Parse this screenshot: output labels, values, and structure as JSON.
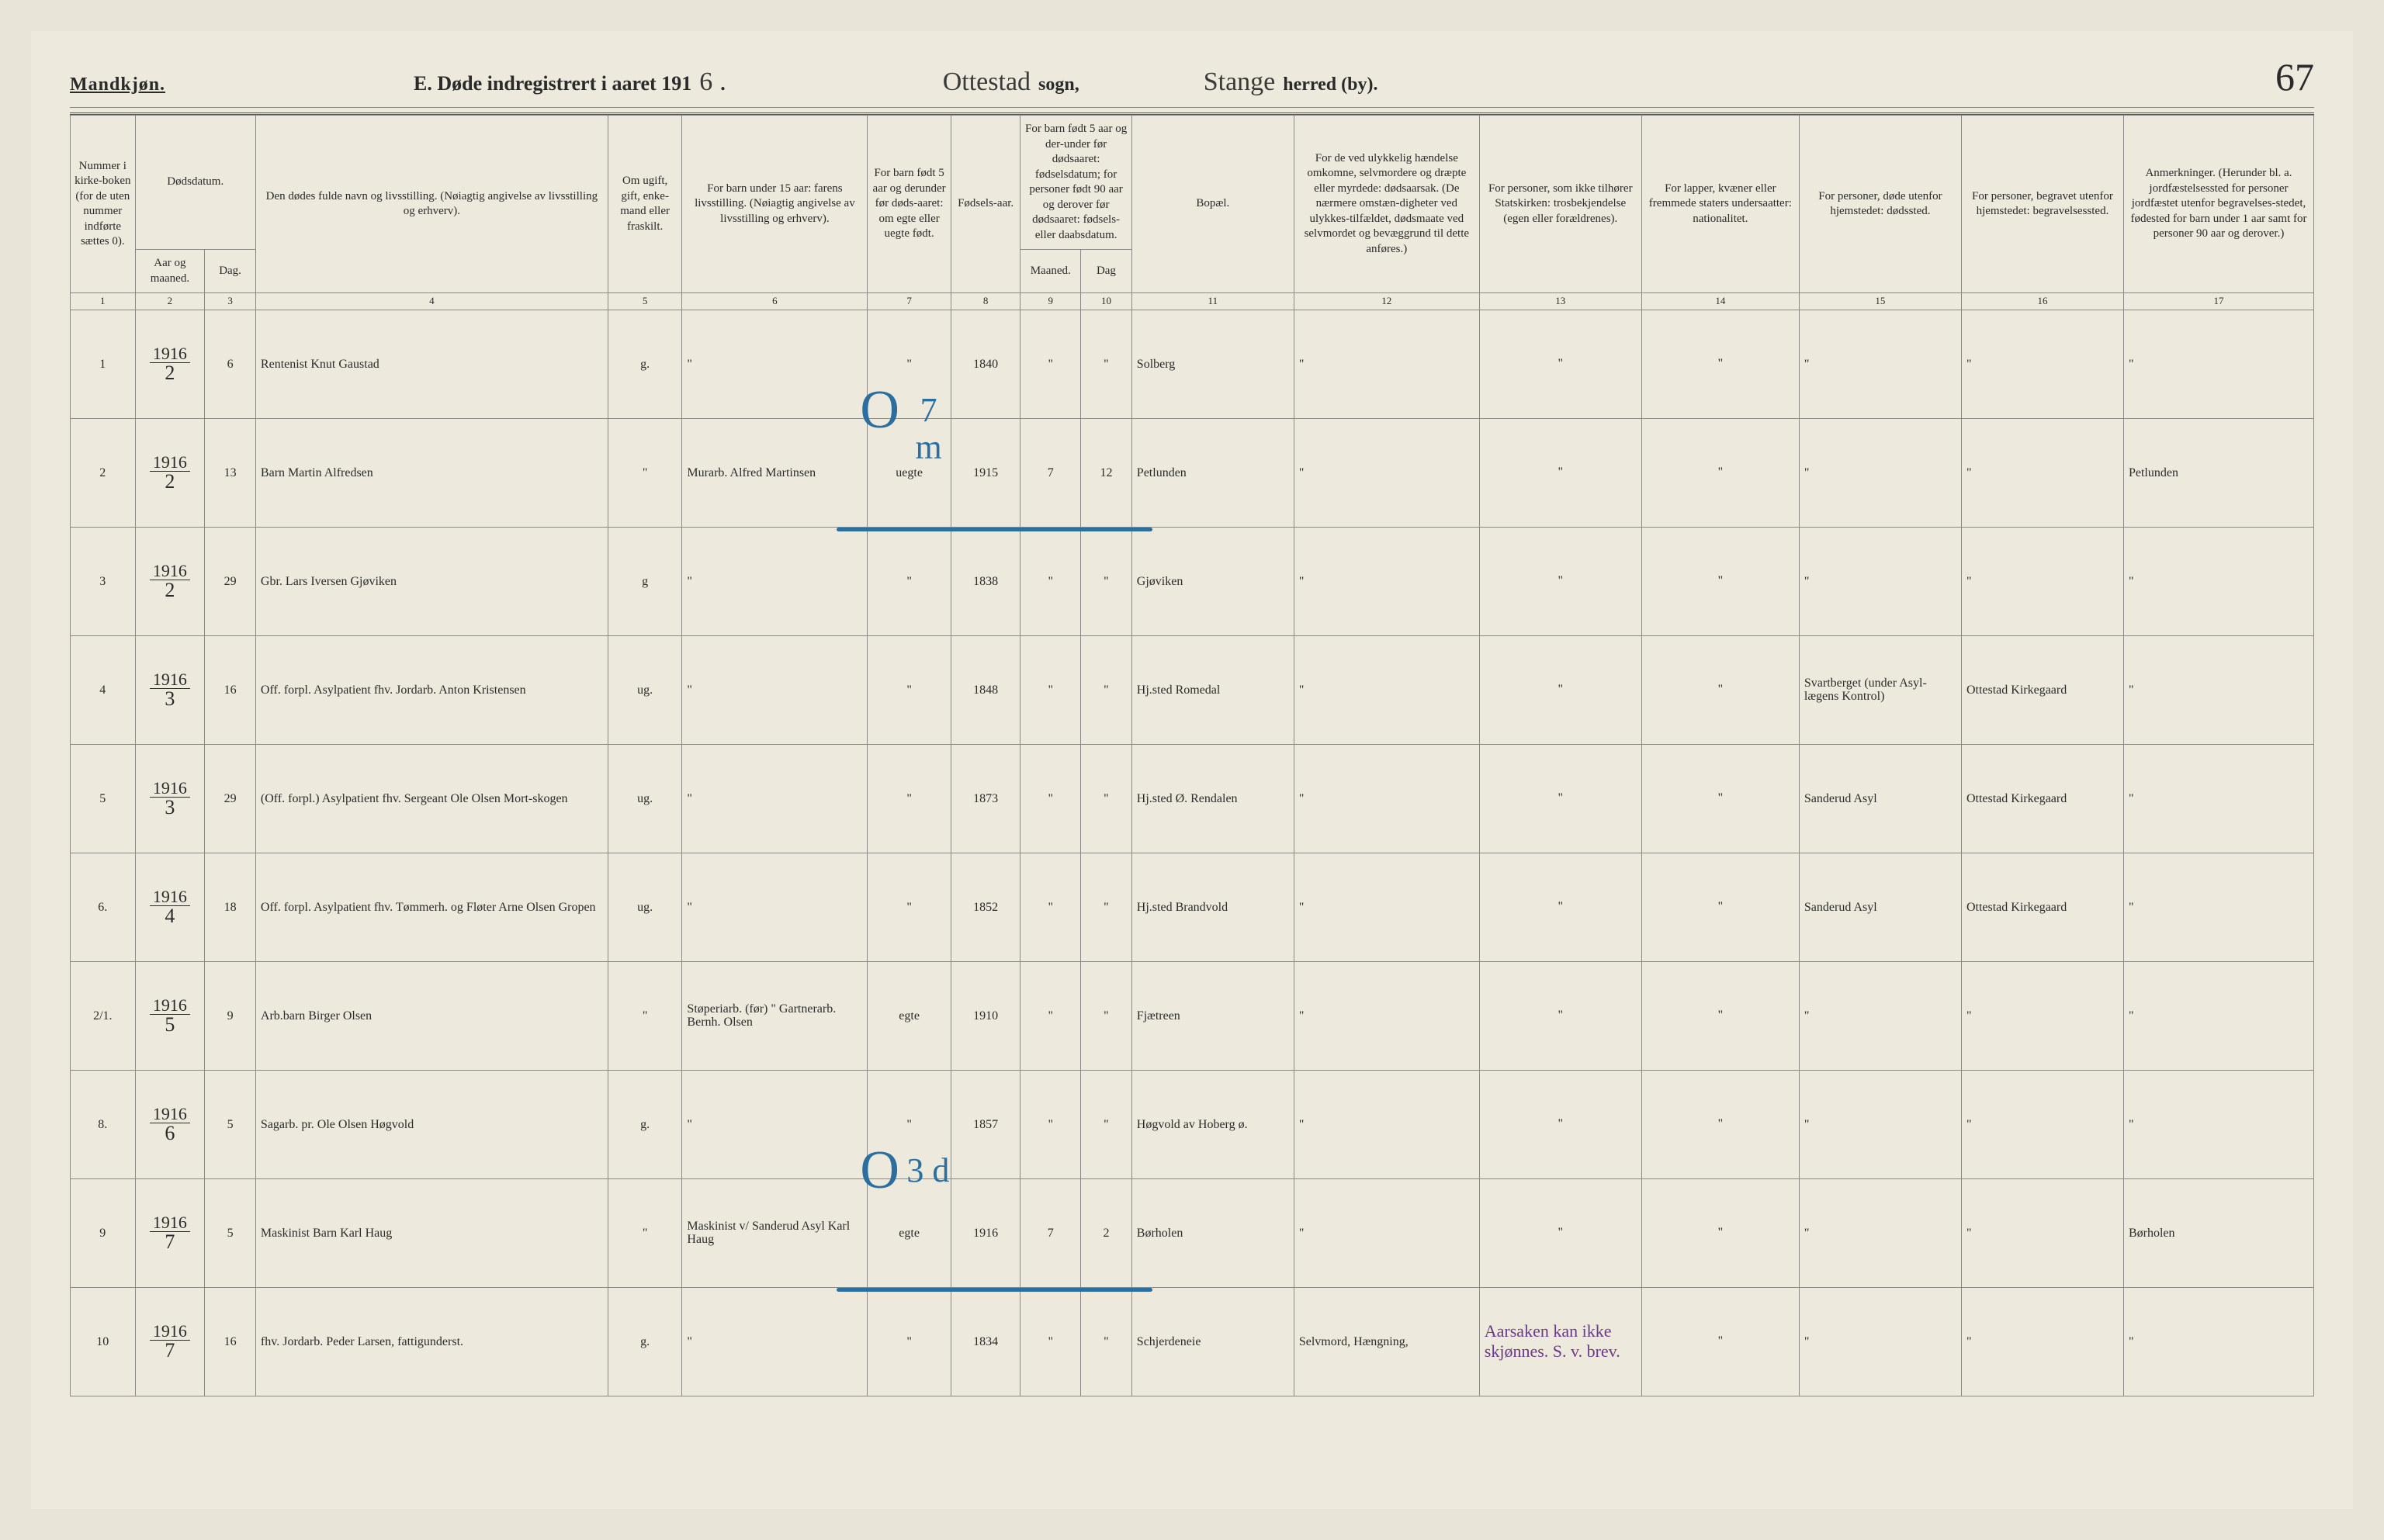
{
  "header": {
    "gender": "Mandkjøn.",
    "title_prefix": "E.  Døde indregistrert i aaret 191",
    "year_suffix": "6",
    "sogn_name": "Ottestad",
    "sogn_label": "sogn,",
    "herred_name": "Stange",
    "herred_label": "herred (by).",
    "page_number": "67"
  },
  "columns": {
    "c1": "Nummer i kirke-boken (for de uten nummer indførte sættes 0).",
    "c2a": "Dødsdatum.",
    "c2_aar": "Aar og maaned.",
    "c2_dag": "Dag.",
    "c4": "Den dødes fulde navn og livsstilling. (Nøiagtig angivelse av livsstilling og erhverv).",
    "c5": "Om ugift, gift, enke-mand eller fraskilt.",
    "c6": "For barn under 15 aar: farens livsstilling. (Nøiagtig angivelse av livsstilling og erhverv).",
    "c7": "For barn født 5 aar og derunder før døds-aaret: om egte eller uegte født.",
    "c8": "Fødsels-aar.",
    "c9": "For barn født 5 aar og der-under før dødsaaret: fødselsdatum; for personer født 90 aar og derover før dødsaaret: fødsels- eller daabsdatum.",
    "c9_m": "Maaned.",
    "c9_d": "Dag",
    "c11": "Bopæl.",
    "c12": "For de ved ulykkelig hændelse omkomne, selvmordere og dræpte eller myrdede: dødsaarsak. (De nærmere omstæn-digheter ved ulykkes-tilfældet, dødsmaate ved selvmordet og bevæggrund til dette anføres.)",
    "c13": "For personer, som ikke tilhører Statskirken: trosbekjendelse (egen eller forældrenes).",
    "c14": "For lapper, kvæner eller fremmede staters undersaatter: nationalitet.",
    "c15": "For personer, døde utenfor hjemstedet: dødssted.",
    "c16": "For personer, begravet utenfor hjemstedet: begravelsessted.",
    "c17": "Anmerkninger. (Herunder bl. a. jordfæstelsessted for personer jordfæstet utenfor begravelses-stedet, fødested for barn under 1 aar samt for personer 90 aar og derover.)"
  },
  "colnums": [
    "1",
    "2",
    "3",
    "4",
    "5",
    "6",
    "7",
    "8",
    "9",
    "10",
    "11",
    "12",
    "13",
    "14",
    "15",
    "16",
    "17"
  ],
  "rows": [
    {
      "num": "1",
      "year": "1916",
      "month": "2",
      "day": "6",
      "name": "Rentenist Knut Gaustad",
      "marital": "g.",
      "father": "\"",
      "legit": "\"",
      "birth": "1840",
      "bm": "\"",
      "bd": "\"",
      "residence": "Solberg",
      "cause": "\"",
      "faith": "\"",
      "nat": "\"",
      "deathpl": "\"",
      "burial": "\"",
      "notes": "\"",
      "blue": null
    },
    {
      "num": "2",
      "year": "1916",
      "month": "2",
      "day": "13",
      "name": "Barn Martin Alfredsen",
      "marital": "\"",
      "father": "Murarb. Alfred Martinsen",
      "legit": "uegte",
      "birth": "1915",
      "bm": "7",
      "bd": "12",
      "residence": "Petlunden",
      "cause": "\"",
      "faith": "\"",
      "nat": "\"",
      "deathpl": "\"",
      "burial": "\"",
      "notes": "Petlunden",
      "blue": {
        "o": "O",
        "txt": "7 m"
      }
    },
    {
      "num": "3",
      "year": "1916",
      "month": "2",
      "day": "29",
      "name": "Gbr. Lars Iversen Gjøviken",
      "marital": "g",
      "father": "\"",
      "legit": "\"",
      "birth": "1838",
      "bm": "\"",
      "bd": "\"",
      "residence": "Gjøviken",
      "cause": "\"",
      "faith": "\"",
      "nat": "\"",
      "deathpl": "\"",
      "burial": "\"",
      "notes": "\"",
      "blue": null
    },
    {
      "num": "4",
      "year": "1916",
      "month": "3",
      "day": "16",
      "name": "Off. forpl. Asylpatient fhv. Jordarb. Anton Kristensen",
      "marital": "ug.",
      "father": "\"",
      "legit": "\"",
      "birth": "1848",
      "bm": "\"",
      "bd": "\"",
      "residence": "Hj.sted Romedal",
      "cause": "\"",
      "faith": "\"",
      "nat": "\"",
      "deathpl": "Svartberget (under Asyl-lægens Kontrol)",
      "burial": "Ottestad Kirkegaard",
      "notes": "\"",
      "blue": null
    },
    {
      "num": "5",
      "year": "1916",
      "month": "3",
      "day": "29",
      "name": "(Off. forpl.) Asylpatient fhv. Sergeant Ole Olsen Mort-skogen",
      "marital": "ug.",
      "father": "\"",
      "legit": "\"",
      "birth": "1873",
      "bm": "\"",
      "bd": "\"",
      "residence": "Hj.sted Ø. Rendalen",
      "cause": "\"",
      "faith": "\"",
      "nat": "\"",
      "deathpl": "Sanderud Asyl",
      "burial": "Ottestad Kirkegaard",
      "notes": "\"",
      "blue": null
    },
    {
      "num": "6.",
      "year": "1916",
      "month": "4",
      "day": "18",
      "name": "Off. forpl. Asylpatient fhv. Tømmerh. og Fløter Arne Olsen Gropen",
      "marital": "ug.",
      "father": "\"",
      "legit": "\"",
      "birth": "1852",
      "bm": "\"",
      "bd": "\"",
      "residence": "Hj.sted Brandvold",
      "cause": "\"",
      "faith": "\"",
      "nat": "\"",
      "deathpl": "Sanderud Asyl",
      "burial": "Ottestad Kirkegaard",
      "notes": "\"",
      "blue": null
    },
    {
      "num": "2/1.",
      "year": "1916",
      "month": "5",
      "day": "9",
      "name": "Arb.barn Birger Olsen",
      "marital": "\"",
      "father": "Støperiarb. (før) \" Gartnerarb. Bernh. Olsen",
      "legit": "egte",
      "birth": "1910",
      "bm": "\"",
      "bd": "\"",
      "residence": "Fjætreen",
      "cause": "\"",
      "faith": "\"",
      "nat": "\"",
      "deathpl": "\"",
      "burial": "\"",
      "notes": "\"",
      "blue": null
    },
    {
      "num": "8.",
      "year": "1916",
      "month": "6",
      "day": "5",
      "name": "Sagarb. pr. Ole Olsen Høgvold",
      "marital": "g.",
      "father": "\"",
      "legit": "\"",
      "birth": "1857",
      "bm": "\"",
      "bd": "\"",
      "residence": "Høgvold av Hoberg ø.",
      "cause": "\"",
      "faith": "\"",
      "nat": "\"",
      "deathpl": "\"",
      "burial": "\"",
      "notes": "\"",
      "blue": null
    },
    {
      "num": "9",
      "year": "1916",
      "month": "7",
      "day": "5",
      "name": "Maskinist Barn Karl Haug",
      "marital": "\"",
      "father": "Maskinist v/ Sanderud Asyl Karl Haug",
      "legit": "egte",
      "birth": "1916",
      "bm": "7",
      "bd": "2",
      "residence": "Børholen",
      "cause": "\"",
      "faith": "\"",
      "nat": "\"",
      "deathpl": "\"",
      "burial": "\"",
      "notes": "Børholen",
      "blue": {
        "o": "O",
        "txt": "3 d"
      }
    },
    {
      "num": "10",
      "year": "1916",
      "month": "7",
      "day": "16",
      "name": "fhv. Jordarb. Peder Larsen, fattigunderst.",
      "marital": "g.",
      "father": "\"",
      "legit": "\"",
      "birth": "1834",
      "bm": "\"",
      "bd": "\"",
      "residence": "Schjerdeneie",
      "cause": "Selvmord, Hængning,",
      "faith_purple": "Aarsaken kan ikke skjønnes. S. v. brev.",
      "faith": "",
      "nat": "\"",
      "deathpl": "\"",
      "burial": "\"",
      "notes": "\"",
      "blue": null
    }
  ]
}
